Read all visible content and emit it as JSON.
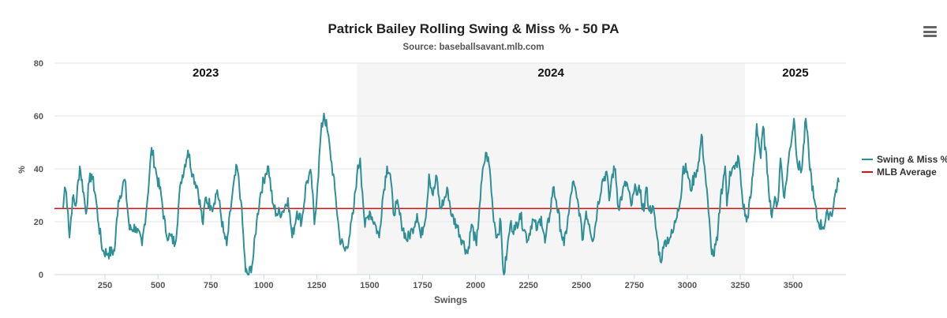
{
  "title": "Patrick Bailey Rolling Swing & Miss % - 50 PA",
  "subtitle": "Source: baseballsavant.mlb.com",
  "menu_icon": "hamburger-menu-icon",
  "legend": [
    {
      "label": "Swing & Miss %",
      "color": "#2f8f96"
    },
    {
      "label": "MLB Average",
      "color": "#dd1111"
    }
  ],
  "chart_data": {
    "type": "line",
    "title": "Patrick Bailey Rolling Swing & Miss % - 50 PA",
    "subtitle": "Source: baseballsavant.mlb.com",
    "xlabel": "Swings",
    "ylabel": "%",
    "xlim": [
      10,
      3760
    ],
    "ylim": [
      0,
      80
    ],
    "xticks": [
      250,
      500,
      750,
      1000,
      1250,
      1500,
      1750,
      2000,
      2250,
      2500,
      2750,
      3000,
      3250,
      3500
    ],
    "yticks": [
      0,
      20,
      40,
      60,
      80
    ],
    "grid": true,
    "legend_position": "right",
    "season_bands": [
      {
        "label": "2023",
        "start": 10,
        "end": 1440,
        "shaded": false
      },
      {
        "label": "2024",
        "start": 1440,
        "end": 3272,
        "shaded": true
      },
      {
        "label": "2025",
        "start": 3272,
        "end": 3760,
        "shaded": false
      }
    ],
    "series": [
      {
        "name": "Swing & Miss %",
        "color": "#2f8f96",
        "points": [
          [
            52,
            25
          ],
          [
            60,
            33
          ],
          [
            67,
            31
          ],
          [
            75,
            24
          ],
          [
            82,
            14
          ],
          [
            97,
            29
          ],
          [
            112,
            26
          ],
          [
            131,
            41
          ],
          [
            149,
            31
          ],
          [
            160,
            23
          ],
          [
            175,
            35
          ],
          [
            187,
            38
          ],
          [
            205,
            30
          ],
          [
            220,
            19
          ],
          [
            239,
            9
          ],
          [
            265,
            8
          ],
          [
            295,
            9
          ],
          [
            313,
            28
          ],
          [
            343,
            36
          ],
          [
            366,
            17
          ],
          [
            396,
            18
          ],
          [
            425,
            11
          ],
          [
            451,
            29
          ],
          [
            470,
            48
          ],
          [
            493,
            38
          ],
          [
            515,
            30
          ],
          [
            537,
            16
          ],
          [
            582,
            12
          ],
          [
            608,
            35
          ],
          [
            642,
            47
          ],
          [
            664,
            38
          ],
          [
            687,
            33
          ],
          [
            713,
            19
          ],
          [
            750,
            26
          ],
          [
            724,
            29
          ],
          [
            754,
            25
          ],
          [
            780,
            32
          ],
          [
            810,
            16
          ],
          [
            825,
            11
          ],
          [
            851,
            30
          ],
          [
            873,
            41
          ],
          [
            892,
            28
          ],
          [
            914,
            1
          ],
          [
            929,
            0
          ],
          [
            948,
            5
          ],
          [
            966,
            20
          ],
          [
            985,
            31
          ],
          [
            1007,
            38
          ],
          [
            1022,
            41
          ],
          [
            1041,
            27
          ],
          [
            1060,
            23
          ],
          [
            1090,
            24
          ],
          [
            1114,
            29
          ],
          [
            1134,
            14
          ],
          [
            1157,
            24
          ],
          [
            1179,
            20
          ],
          [
            1201,
            35
          ],
          [
            1224,
            38
          ],
          [
            1239,
            19
          ],
          [
            1254,
            34
          ],
          [
            1269,
            53
          ],
          [
            1284,
            61
          ],
          [
            1299,
            55
          ],
          [
            1313,
            47
          ],
          [
            1336,
            32
          ],
          [
            1358,
            14
          ],
          [
            1384,
            9
          ],
          [
            1403,
            14
          ],
          [
            1422,
            23
          ],
          [
            1440,
            38
          ],
          [
            1455,
            44
          ],
          [
            1466,
            31
          ],
          [
            1478,
            18
          ],
          [
            1500,
            24
          ],
          [
            1526,
            19
          ],
          [
            1545,
            14
          ],
          [
            1560,
            28
          ],
          [
            1582,
            41
          ],
          [
            1597,
            38
          ],
          [
            1612,
            23
          ],
          [
            1627,
            27
          ],
          [
            1649,
            20
          ],
          [
            1675,
            13
          ],
          [
            1701,
            17
          ],
          [
            1724,
            23
          ],
          [
            1742,
            14
          ],
          [
            1769,
            25
          ],
          [
            1780,
            38
          ],
          [
            1799,
            30
          ],
          [
            1817,
            37
          ],
          [
            1832,
            25
          ],
          [
            1851,
            28
          ],
          [
            1869,
            32
          ],
          [
            1888,
            22
          ],
          [
            1910,
            19
          ],
          [
            1937,
            13
          ],
          [
            1963,
            8
          ],
          [
            1981,
            19
          ],
          [
            2004,
            11
          ],
          [
            2019,
            26
          ],
          [
            2037,
            41
          ],
          [
            2052,
            46
          ],
          [
            2067,
            40
          ],
          [
            2082,
            24
          ],
          [
            2101,
            14
          ],
          [
            2119,
            20
          ],
          [
            2128,
            5
          ],
          [
            2134,
            0
          ],
          [
            2149,
            9
          ],
          [
            2164,
            19
          ],
          [
            2187,
            17
          ],
          [
            2209,
            23
          ],
          [
            2231,
            17
          ],
          [
            2246,
            13
          ],
          [
            2269,
            21
          ],
          [
            2291,
            17
          ],
          [
            2310,
            22
          ],
          [
            2328,
            12
          ],
          [
            2351,
            23
          ],
          [
            2366,
            33
          ],
          [
            2381,
            28
          ],
          [
            2403,
            17
          ],
          [
            2418,
            11
          ],
          [
            2440,
            23
          ],
          [
            2459,
            35
          ],
          [
            2478,
            29
          ],
          [
            2493,
            23
          ],
          [
            2504,
            13
          ],
          [
            2522,
            24
          ],
          [
            2537,
            19
          ],
          [
            2556,
            13
          ],
          [
            2575,
            25
          ],
          [
            2597,
            35
          ],
          [
            2619,
            39
          ],
          [
            2631,
            28
          ],
          [
            2646,
            38
          ],
          [
            2660,
            40
          ],
          [
            2675,
            25
          ],
          [
            2694,
            31
          ],
          [
            2713,
            35
          ],
          [
            2735,
            26
          ],
          [
            2757,
            33
          ],
          [
            2776,
            31
          ],
          [
            2795,
            24
          ],
          [
            2806,
            33
          ],
          [
            2821,
            24
          ],
          [
            2836,
            26
          ],
          [
            2858,
            14
          ],
          [
            2873,
            5
          ],
          [
            2888,
            10
          ],
          [
            2896,
            13
          ],
          [
            2918,
            14
          ],
          [
            2933,
            16
          ],
          [
            2955,
            25
          ],
          [
            2970,
            29
          ],
          [
            2981,
            41
          ],
          [
            3000,
            39
          ],
          [
            3015,
            32
          ],
          [
            3037,
            38
          ],
          [
            3056,
            43
          ],
          [
            3067,
            53
          ],
          [
            3085,
            38
          ],
          [
            3100,
            24
          ],
          [
            3112,
            11
          ],
          [
            3123,
            7
          ],
          [
            3142,
            13
          ],
          [
            3157,
            29
          ],
          [
            3179,
            41
          ],
          [
            3187,
            26
          ],
          [
            3201,
            39
          ],
          [
            3224,
            40
          ],
          [
            3243,
            44
          ],
          [
            3261,
            28
          ],
          [
            3280,
            20
          ],
          [
            3299,
            29
          ],
          [
            3317,
            44
          ],
          [
            3328,
            57
          ],
          [
            3347,
            44
          ],
          [
            3358,
            56
          ],
          [
            3381,
            37
          ],
          [
            3396,
            23
          ],
          [
            3410,
            27
          ],
          [
            3429,
            28
          ],
          [
            3440,
            44
          ],
          [
            3459,
            29
          ],
          [
            3478,
            43
          ],
          [
            3504,
            59
          ],
          [
            3522,
            41
          ],
          [
            3541,
            40
          ],
          [
            3560,
            59
          ],
          [
            3575,
            44
          ],
          [
            3597,
            29
          ],
          [
            3616,
            20
          ],
          [
            3642,
            18
          ],
          [
            3664,
            23
          ],
          [
            3687,
            24
          ],
          [
            3701,
            32
          ],
          [
            3716,
            35
          ]
        ]
      },
      {
        "name": "MLB Average",
        "color": "#dd1111",
        "value": 25
      }
    ]
  }
}
